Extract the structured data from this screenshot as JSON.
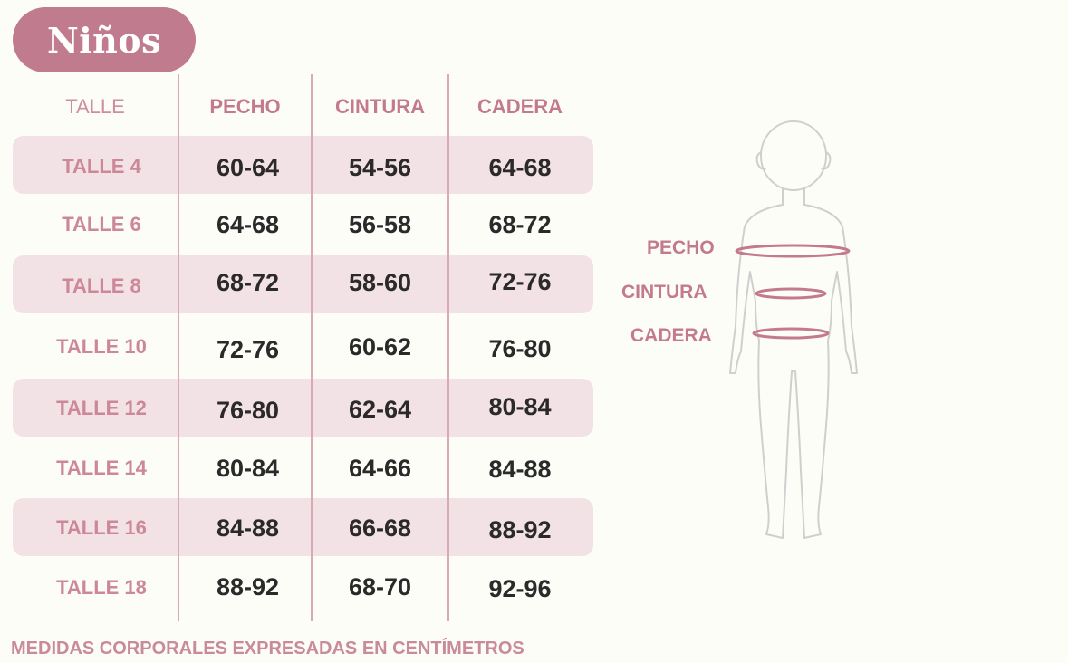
{
  "title": "Niños",
  "headers": {
    "size": "TALLE",
    "chest": "PECHO",
    "waist": "CINTURA",
    "hip": "CADERA"
  },
  "rows": [
    {
      "size": "TALLE 4",
      "chest": "60-64",
      "waist": "54-56",
      "hip": "64-68"
    },
    {
      "size": "TALLE 6",
      "chest": "64-68",
      "waist": "56-58",
      "hip": "68-72"
    },
    {
      "size": "TALLE 8",
      "chest": "68-72",
      "waist": "58-60",
      "hip": "72-76"
    },
    {
      "size": "TALLE 10",
      "chest": "72-76",
      "waist": "60-62",
      "hip": "76-80"
    },
    {
      "size": "TALLE 12",
      "chest": "76-80",
      "waist": "62-64",
      "hip": "80-84"
    },
    {
      "size": "TALLE 14",
      "chest": "80-84",
      "waist": "64-66",
      "hip": "84-88"
    },
    {
      "size": "TALLE 16",
      "chest": "84-88",
      "waist": "66-68",
      "hip": "88-92"
    },
    {
      "size": "TALLE 18",
      "chest": "88-92",
      "waist": "68-70",
      "hip": "92-96"
    }
  ],
  "figure": {
    "icon": "child-body-outline-icon",
    "labels": {
      "chest": "PECHO",
      "waist": "CINTURA",
      "hip": "CADERA"
    }
  },
  "footer": "MEDIDAS CORPORALES EXPRESADAS EN CENTÍMETROS",
  "colors": {
    "accent": "#c17b8f",
    "band": "#f3e2e5",
    "label": "#c47a8e",
    "value": "#2a2a2a",
    "background": "#fdfdf8"
  }
}
